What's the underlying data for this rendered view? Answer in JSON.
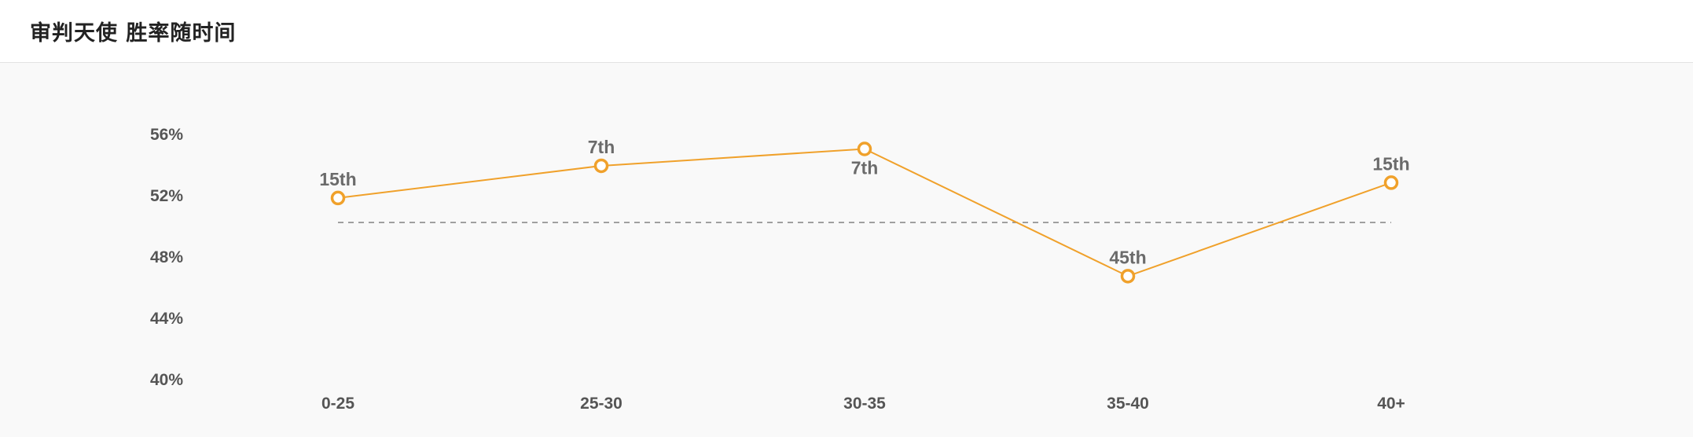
{
  "header": {
    "title": "审判天使 胜率随时间"
  },
  "chart_data": {
    "type": "line",
    "title": "审判天使 胜率随时间",
    "categories": [
      "0-25",
      "25-30",
      "30-35",
      "35-40",
      "40+"
    ],
    "series": [
      {
        "values": [
          51.8,
          53.9,
          55.0,
          46.7,
          52.8
        ],
        "labels": [
          "15th",
          "7th",
          "7th",
          "45th",
          "15th"
        ],
        "label_position": [
          "above",
          "above",
          "below",
          "above",
          "above"
        ]
      }
    ],
    "reference_line": 50.2,
    "y_ticks": [
      56,
      52,
      48,
      44,
      40
    ],
    "y_tick_labels": [
      "56%",
      "52%",
      "48%",
      "44%",
      "40%"
    ],
    "ylim": [
      40,
      56
    ],
    "xlabel": "",
    "ylabel": "",
    "grid": false,
    "colors": {
      "line": "#f0a12b",
      "reference": "#8c8c8c",
      "tick_text": "#555555",
      "label_text": "#6b6b6b"
    }
  }
}
